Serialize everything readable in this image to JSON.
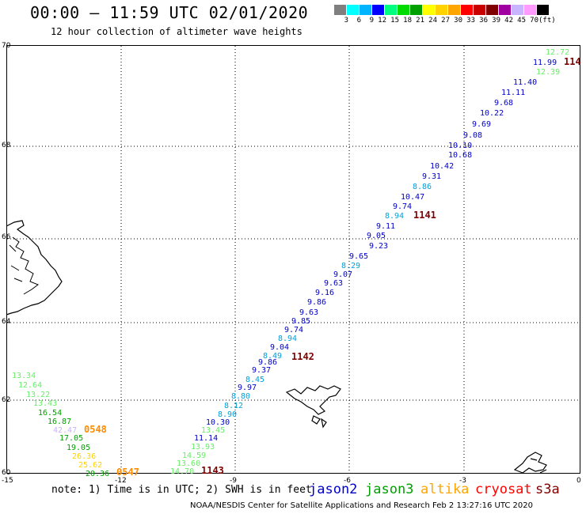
{
  "header": {
    "title": "00:00 – 11:59 UTC 02/01/2020",
    "subtitle": "12 hour collection of altimeter wave heights"
  },
  "colorbar": {
    "colors": [
      "#7f7f7f",
      "#00ffff",
      "#00b4ff",
      "#0000ff",
      "#00ff7f",
      "#00dc00",
      "#00a000",
      "#ffff00",
      "#ffd200",
      "#ffa500",
      "#ff0000",
      "#c80000",
      "#800000",
      "#a000a0",
      "#c8b4ff",
      "#ff9bff",
      "#000000"
    ],
    "labels": [
      "3",
      "6",
      "9",
      "12",
      "15",
      "18",
      "21",
      "24",
      "27",
      "30",
      "33",
      "36",
      "39",
      "42",
      "45",
      "70",
      "(ft)"
    ]
  },
  "axes": {
    "lat_labels": [
      "70",
      "68",
      "66",
      "64",
      "62",
      "60"
    ],
    "lon_labels": [
      "-15",
      "-12",
      "-9",
      "-6",
      "-3",
      "0"
    ]
  },
  "satellite_colors": {
    "jason2": "#0000c8",
    "jason3": "#00a000",
    "altika": "#ffa500",
    "cryosat": "#ff0000",
    "s3a": "#800000"
  },
  "tracks": [
    {
      "time": "1141",
      "color": "#800000"
    },
    {
      "time": "1142",
      "color": "#800000"
    },
    {
      "time": "1143",
      "color": "#800000"
    },
    {
      "time": "0548",
      "color": "#ff8c00"
    },
    {
      "time": "0547",
      "color": "#ff8c00"
    },
    {
      "time": "114",
      "color": "#800000"
    }
  ],
  "wave_labels": [
    {
      "v": "12.72",
      "c": "#66ee66"
    },
    {
      "v": "11.99",
      "c": "#0000c8"
    },
    {
      "v": "12.39",
      "c": "#66ee66"
    },
    {
      "v": "11.40",
      "c": "#0000c8"
    },
    {
      "v": "11.11",
      "c": "#0000c8"
    },
    {
      "v": "9.68",
      "c": "#0000c8"
    },
    {
      "v": "10.22",
      "c": "#0000c8"
    },
    {
      "v": "9.69",
      "c": "#0000c8"
    },
    {
      "v": "9.08",
      "c": "#0000c8"
    },
    {
      "v": "10.10",
      "c": "#0000c8"
    },
    {
      "v": "10.68",
      "c": "#0000c8"
    },
    {
      "v": "10.42",
      "c": "#0000c8"
    },
    {
      "v": "9.31",
      "c": "#0000c8"
    },
    {
      "v": "8.86",
      "c": "#00a0dc"
    },
    {
      "v": "10.47",
      "c": "#0000c8"
    },
    {
      "v": "9.74",
      "c": "#0000c8"
    },
    {
      "v": "8.94",
      "c": "#00a0dc"
    },
    {
      "v": "9.11",
      "c": "#0000c8"
    },
    {
      "v": "9.05",
      "c": "#0000c8"
    },
    {
      "v": "9.23",
      "c": "#0000c8"
    },
    {
      "v": "9.65",
      "c": "#0000c8"
    },
    {
      "v": "8.29",
      "c": "#00a0dc"
    },
    {
      "v": "9.07",
      "c": "#0000c8"
    },
    {
      "v": "9.63",
      "c": "#0000c8"
    },
    {
      "v": "9.16",
      "c": "#0000c8"
    },
    {
      "v": "9.86",
      "c": "#0000c8"
    },
    {
      "v": "9.63",
      "c": "#0000c8"
    },
    {
      "v": "9.85",
      "c": "#0000c8"
    },
    {
      "v": "9.74",
      "c": "#0000c8"
    },
    {
      "v": "8.94",
      "c": "#00a0dc"
    },
    {
      "v": "9.04",
      "c": "#0000c8"
    },
    {
      "v": "8.49",
      "c": "#00a0dc"
    },
    {
      "v": "9.86",
      "c": "#0000c8"
    },
    {
      "v": "9.37",
      "c": "#0000c8"
    },
    {
      "v": "8.45",
      "c": "#00a0dc"
    },
    {
      "v": "9.97",
      "c": "#0000c8"
    },
    {
      "v": "8.80",
      "c": "#00a0dc"
    },
    {
      "v": "8.12",
      "c": "#00a0dc"
    },
    {
      "v": "8.90",
      "c": "#00a0dc"
    },
    {
      "v": "10.30",
      "c": "#0000c8"
    },
    {
      "v": "13.45",
      "c": "#66ee66"
    },
    {
      "v": "11.14",
      "c": "#0000c8"
    },
    {
      "v": "13.93",
      "c": "#66ee66"
    },
    {
      "v": "14.59",
      "c": "#66ee66"
    },
    {
      "v": "13.60",
      "c": "#66ee66"
    },
    {
      "v": "14.70",
      "c": "#66ee66"
    },
    {
      "v": "13.34",
      "c": "#66ee66"
    },
    {
      "v": "12.64",
      "c": "#66ee66"
    },
    {
      "v": "13.22",
      "c": "#66ee66"
    },
    {
      "v": "13.43",
      "c": "#66ee66"
    },
    {
      "v": "16.54",
      "c": "#00a000"
    },
    {
      "v": "16.87",
      "c": "#00a000"
    },
    {
      "v": "42.47",
      "c": "#c8b4ff"
    },
    {
      "v": "17.05",
      "c": "#00a000"
    },
    {
      "v": "19.05",
      "c": "#00a000"
    },
    {
      "v": "26.36",
      "c": "#ffd200"
    },
    {
      "v": "25.62",
      "c": "#ffd200"
    },
    {
      "v": "20.36",
      "c": "#00a000"
    }
  ],
  "footer": {
    "note": "note: 1) Time is in UTC; 2) SWH is in feet",
    "legend": {
      "jason2": "jason2",
      "jason3": "jason3",
      "altika": "altika",
      "cryosat": "cryosat",
      "s3a": "s3a"
    },
    "credit": "NOAA/NESDIS Center for Satellite Applications and Research   Feb  2 13:27:16 UTC 2020"
  }
}
